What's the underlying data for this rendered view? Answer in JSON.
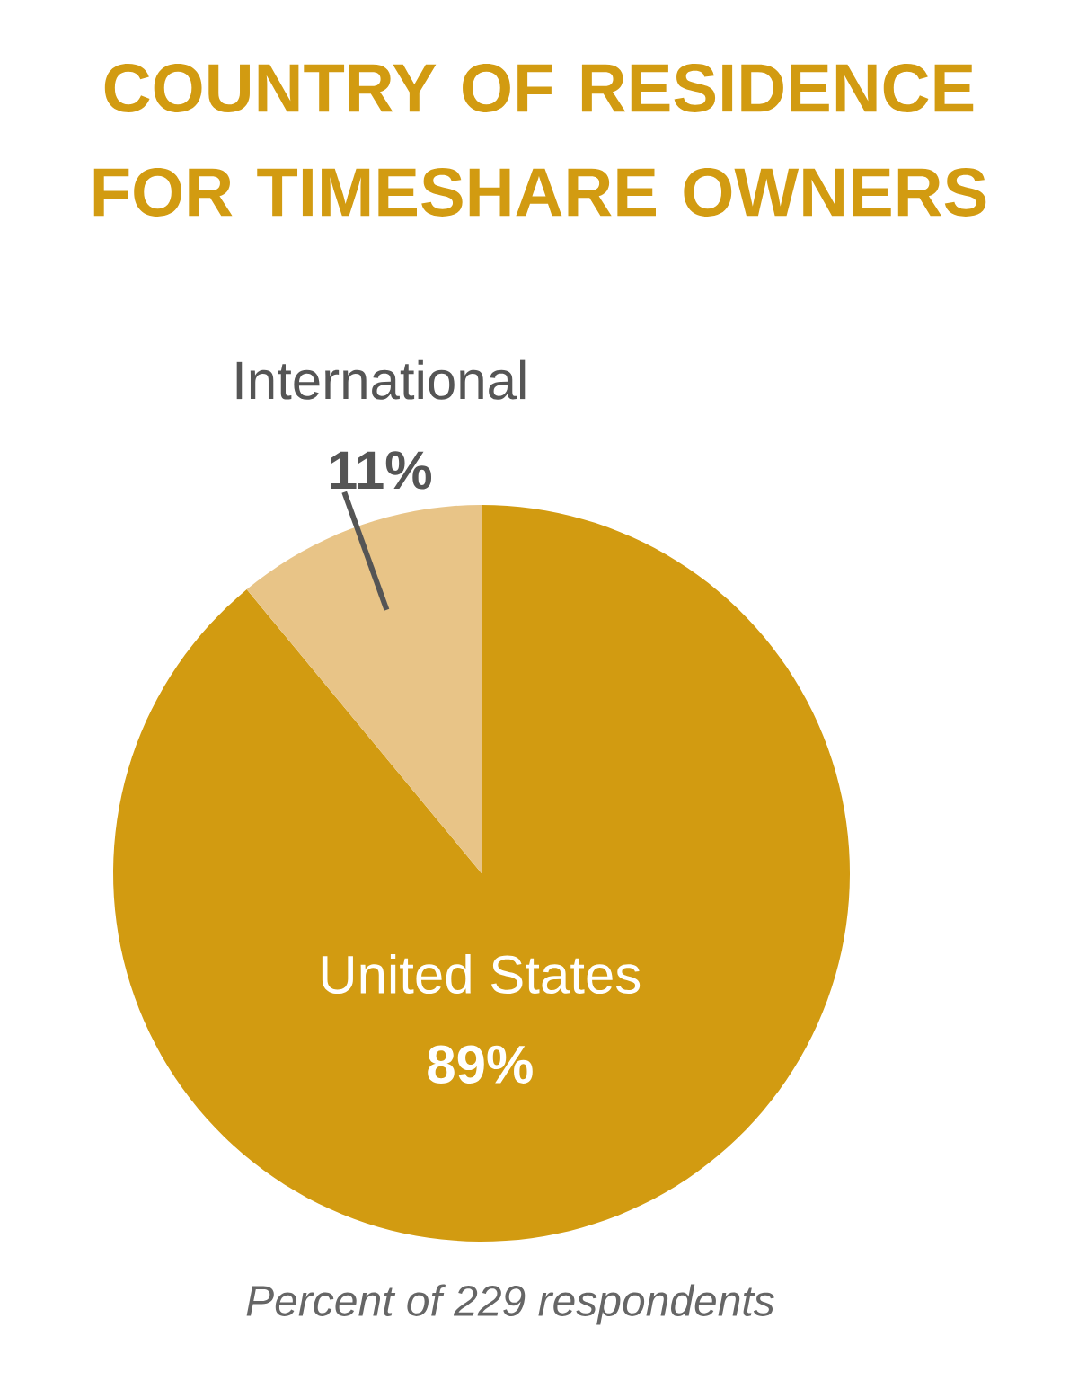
{
  "chart_data": {
    "type": "pie",
    "title": "COUNTRY OF RESIDENCE FOR TIMESHARE OWNERS",
    "categories": [
      "United States",
      "International"
    ],
    "values": [
      89,
      11
    ],
    "value_labels": [
      "89%",
      "11%"
    ],
    "colors": [
      "#d29b11",
      "#e8c487"
    ],
    "annotations": [
      "Percent of 229 respondents"
    ]
  }
}
